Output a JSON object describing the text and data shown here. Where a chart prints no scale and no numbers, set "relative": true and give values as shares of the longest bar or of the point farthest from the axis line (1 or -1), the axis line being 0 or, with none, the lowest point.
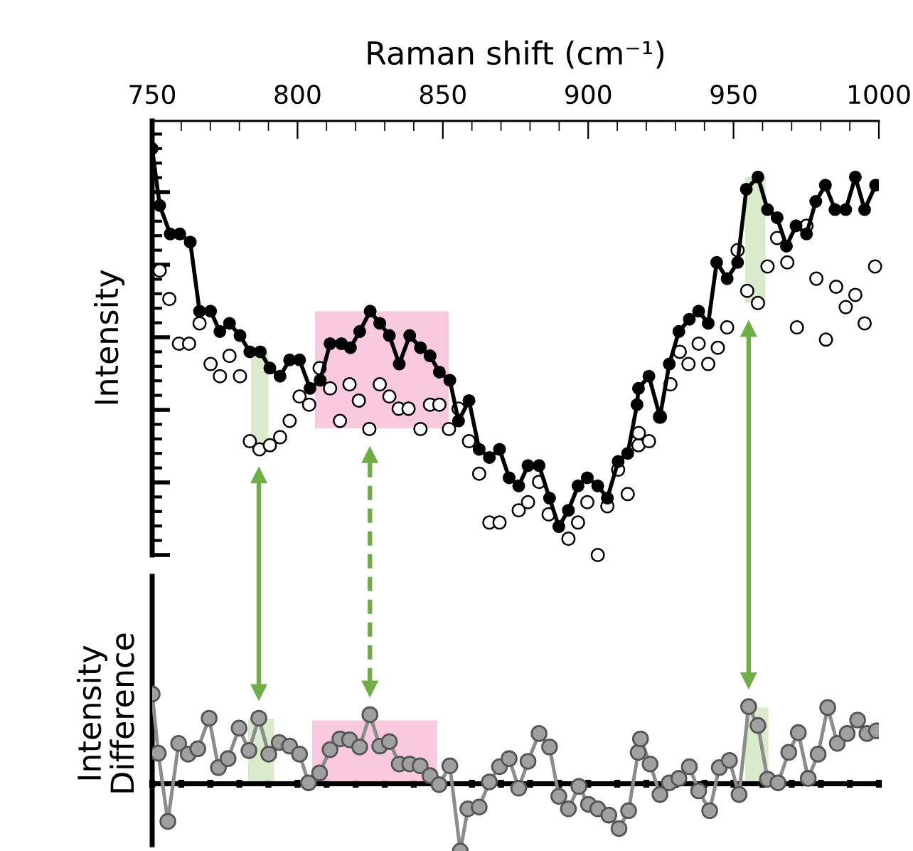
{
  "chart_data": [
    {
      "type": "line",
      "xlabel": "Raman shift (cm⁻¹)",
      "ylabel": "Intensity",
      "xlim": [
        750,
        1000
      ],
      "xticks": [
        750,
        800,
        850,
        900,
        950,
        1000
      ],
      "relative": true,
      "tick_labels": "x",
      "series": [
        {
          "color": "#000000",
          "marker": "circle",
          "x": [
            750.0,
            752.6,
            756.2,
            759.5,
            763.1,
            766.3,
            770.1,
            773.3,
            776.6,
            780.2,
            783.6,
            787.2,
            790.5,
            794.0,
            797.3,
            800.7,
            804.3,
            807.8,
            811.2,
            815.1,
            818.2,
            821.4,
            825.0,
            828.3,
            831.6,
            835.0,
            838.6,
            842.3,
            845.6,
            848.8,
            852.4,
            855.4,
            859.0,
            862.5,
            866.0,
            869.5,
            872.8,
            876.1,
            879.3,
            883.1,
            886.7,
            889.9,
            893.2,
            896.5,
            899.7,
            903.3,
            906.6,
            910.3,
            913.6,
            916.8,
            917.3,
            920.9,
            924.7,
            927.9,
            931.2,
            934.8,
            938.0,
            941.3,
            944.2,
            947.8,
            951.4,
            954.4,
            958.4,
            961.7,
            965.0,
            968.2,
            971.5,
            975.1,
            978.3,
            981.6,
            984.9,
            988.6,
            991.9,
            995.1,
            998.9
          ],
          "values": [
            1.0,
            0.86,
            0.79,
            0.79,
            0.77,
            0.6,
            0.6,
            0.55,
            0.57,
            0.54,
            0.5,
            0.5,
            0.46,
            0.44,
            0.48,
            0.48,
            0.41,
            0.43,
            0.52,
            0.52,
            0.51,
            0.55,
            0.6,
            0.57,
            0.54,
            0.47,
            0.54,
            0.51,
            0.49,
            0.45,
            0.43,
            0.33,
            0.38,
            0.26,
            0.24,
            0.26,
            0.19,
            0.17,
            0.22,
            0.22,
            0.14,
            0.07,
            0.11,
            0.17,
            0.19,
            0.17,
            0.14,
            0.23,
            0.25,
            0.37,
            0.41,
            0.44,
            0.34,
            0.47,
            0.55,
            0.58,
            0.6,
            0.57,
            0.72,
            0.68,
            0.72,
            0.9,
            0.93,
            0.85,
            0.83,
            0.76,
            0.81,
            0.79,
            0.87,
            0.91,
            0.85,
            0.85,
            0.93,
            0.85,
            0.91
          ]
        },
        {
          "type": "scatter",
          "color": "#000000",
          "marker": "circle",
          "x": [
            752.6,
            755.9,
            759.2,
            762.7,
            766.3,
            770.1,
            773.3,
            776.6,
            780.2,
            783.6,
            786.9,
            790.5,
            794.0,
            797.3,
            800.7,
            804.0,
            807.6,
            811.2,
            814.6,
            817.9,
            821.1,
            824.7,
            828.3,
            831.6,
            834.8,
            838.2,
            842.3,
            845.6,
            848.8,
            852.1,
            855.4,
            859.0,
            862.5,
            866.0,
            869.5,
            876.1,
            879.3,
            883.1,
            886.4,
            893.2,
            896.5,
            899.7,
            903.3,
            906.6,
            910.3,
            913.6,
            917.3,
            917.4,
            920.9,
            924.7,
            928.3,
            931.5,
            934.5,
            938.0,
            941.3,
            944.6,
            947.8,
            951.4,
            954.7,
            958.4,
            961.7,
            965.0,
            968.5,
            971.8,
            975.1,
            978.5,
            981.8,
            985.3,
            988.6,
            991.9,
            995.1,
            998.7
          ],
          "values": [
            0.7,
            0.63,
            0.52,
            0.52,
            0.57,
            0.47,
            0.44,
            0.49,
            0.44,
            0.28,
            0.26,
            0.27,
            0.29,
            0.33,
            0.39,
            0.37,
            0.46,
            0.41,
            0.33,
            0.42,
            0.38,
            0.31,
            0.42,
            0.39,
            0.36,
            0.36,
            0.31,
            0.37,
            0.37,
            0.31,
            0.36,
            0.28,
            0.2,
            0.08,
            0.08,
            0.11,
            0.13,
            0.18,
            0.1,
            0.04,
            0.08,
            0.13,
            0.0,
            0.12,
            0.21,
            0.15,
            0.27,
            0.3,
            0.28,
            0.34,
            0.42,
            0.5,
            0.47,
            0.52,
            0.47,
            0.51,
            0.56,
            0.75,
            0.65,
            0.62,
            0.71,
            0.78,
            0.72,
            0.56,
            0.81,
            0.68,
            0.53,
            0.66,
            0.61,
            0.64,
            0.57,
            0.71
          ]
        }
      ],
      "bands": [
        {
          "axis": "x",
          "from": 784,
          "to": 790,
          "color": "#d5e8c8"
        },
        {
          "axis": "x",
          "from": 806,
          "to": 852,
          "color": "#f8c3dd"
        },
        {
          "axis": "x",
          "from": 954,
          "to": 961,
          "color": "#d5e8c8"
        }
      ]
    },
    {
      "type": "line",
      "ylabel": "Intensity\nDifference",
      "xlim": [
        750,
        1000
      ],
      "xticks": [
        750,
        800,
        850,
        900,
        950,
        1000
      ],
      "relative": true,
      "tick_labels": false,
      "series": [
        {
          "color": "#a0a0a0",
          "marker": "circle",
          "x": [
            750.0,
            752.1,
            755.4,
            759.1,
            762.4,
            765.7,
            769.6,
            772.8,
            776.1,
            779.9,
            783.3,
            786.7,
            790.1,
            793.7,
            797.3,
            800.7,
            803.8,
            807.6,
            811.2,
            814.6,
            817.9,
            821.4,
            824.9,
            828.3,
            831.6,
            835.0,
            838.6,
            842.2,
            845.6,
            848.7,
            852.4,
            856.0,
            858.6,
            862.5,
            866.0,
            869.5,
            872.8,
            876.1,
            879.3,
            883.1,
            886.7,
            889.9,
            893.2,
            896.8,
            900.1,
            903.3,
            907.1,
            910.6,
            913.9,
            917.2,
            918.0,
            921.3,
            924.7,
            927.9,
            931.2,
            934.8,
            938.0,
            941.8,
            945.1,
            948.6,
            951.9,
            955.2,
            958.4,
            961.7,
            965.3,
            969.0,
            972.3,
            975.7,
            979.1,
            982.4,
            985.7,
            989.1,
            992.7,
            995.9,
            999.2
          ],
          "values": [
            1.0,
            0.34,
            -0.42,
            0.45,
            0.33,
            0.39,
            0.73,
            0.18,
            0.28,
            0.62,
            0.37,
            0.73,
            0.33,
            0.46,
            0.42,
            0.33,
            0.01,
            0.12,
            0.38,
            0.5,
            0.49,
            0.41,
            0.77,
            0.42,
            0.47,
            0.22,
            0.22,
            0.2,
            0.09,
            -0.01,
            0.2,
            -0.75,
            -0.28,
            -0.26,
            0.02,
            0.19,
            0.28,
            -0.05,
            0.25,
            0.56,
            0.41,
            -0.14,
            -0.28,
            -0.03,
            -0.23,
            -0.28,
            -0.35,
            -0.5,
            -0.3,
            0.35,
            0.5,
            0.22,
            -0.12,
            0.01,
            0.06,
            0.19,
            -0.08,
            -0.3,
            0.18,
            0.26,
            -0.12,
            0.86,
            0.65,
            0.05,
            0.01,
            0.35,
            0.57,
            0.06,
            0.33,
            0.85,
            0.45,
            0.56,
            0.71,
            0.56,
            0.59
          ]
        }
      ],
      "bands": [
        {
          "axis": "x",
          "from": 783,
          "to": 792,
          "color": "#d5e8c8"
        },
        {
          "axis": "x",
          "from": 805,
          "to": 848,
          "color": "#f8c3dd"
        },
        {
          "axis": "x",
          "from": 954,
          "to": 962,
          "color": "#d5e8c8"
        }
      ]
    }
  ]
}
